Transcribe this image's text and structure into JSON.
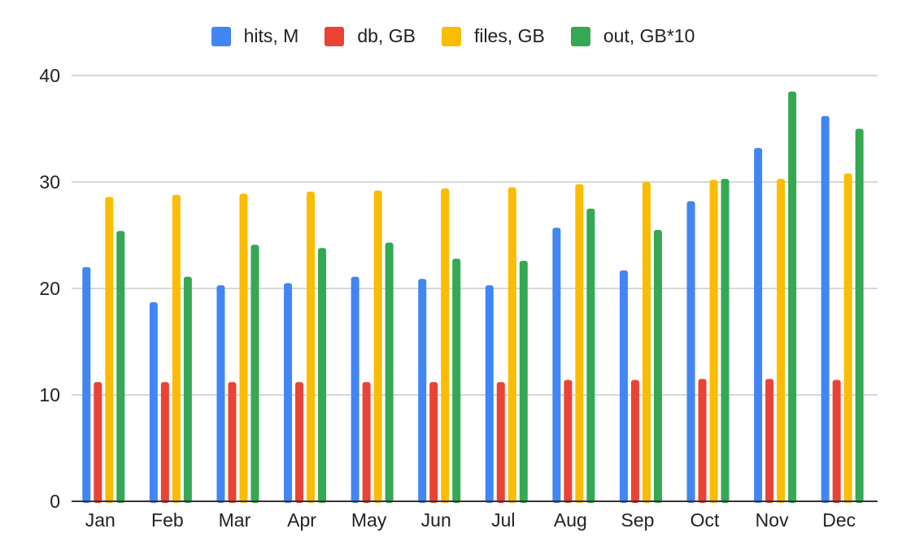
{
  "chart_data": {
    "type": "bar",
    "title": "",
    "xlabel": "",
    "ylabel": "",
    "ylim": [
      0,
      40
    ],
    "yticks": [
      0,
      10,
      20,
      30,
      40
    ],
    "grid": true,
    "legend_position": "top-center",
    "categories": [
      "Jan",
      "Feb",
      "Mar",
      "Apr",
      "May",
      "Jun",
      "Jul",
      "Aug",
      "Sep",
      "Oct",
      "Nov",
      "Dec"
    ],
    "series": [
      {
        "name": "hits, M",
        "color": "#4285F4",
        "values": [
          22.0,
          18.7,
          20.3,
          20.5,
          21.1,
          20.9,
          20.3,
          25.7,
          21.7,
          28.2,
          33.2,
          36.2
        ]
      },
      {
        "name": "db, GB",
        "color": "#EA4335",
        "values": [
          11.2,
          11.2,
          11.2,
          11.2,
          11.2,
          11.2,
          11.2,
          11.4,
          11.4,
          11.5,
          11.5,
          11.4
        ]
      },
      {
        "name": "files, GB",
        "color": "#FBBC04",
        "values": [
          28.6,
          28.8,
          28.9,
          29.1,
          29.2,
          29.4,
          29.5,
          29.8,
          30.0,
          30.2,
          30.3,
          30.8
        ]
      },
      {
        "name": "out, GB*10",
        "color": "#34A853",
        "values": [
          25.4,
          21.1,
          24.1,
          23.8,
          24.3,
          22.8,
          22.6,
          27.5,
          25.5,
          30.3,
          38.5,
          35.0
        ]
      }
    ]
  }
}
